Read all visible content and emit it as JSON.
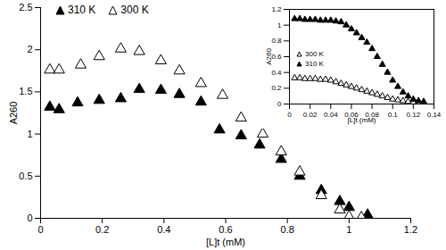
{
  "chart_data": [
    {
      "type": "scatter",
      "x_label": "[L]t (mM)",
      "y_label": "A260",
      "xlim": [
        0,
        1.2
      ],
      "xticks": [
        0,
        0.2,
        0.4,
        0.6,
        0.8,
        1,
        1.2
      ],
      "ylim": [
        0,
        2.5
      ],
      "yticks": [
        0,
        0.5,
        1,
        1.5,
        2,
        2.5
      ],
      "grid": false,
      "legend": "upper left",
      "series": [
        {
          "name": "310 K",
          "color": "#000000",
          "marker": "triangle-filled",
          "x": [
            0.03,
            0.06,
            0.12,
            0.19,
            0.26,
            0.32,
            0.39,
            0.45,
            0.52,
            0.58,
            0.65,
            0.71,
            0.78,
            0.84,
            0.91,
            0.97,
            1.0,
            1.06
          ],
          "values": [
            1.32,
            1.29,
            1.37,
            1.4,
            1.42,
            1.53,
            1.52,
            1.47,
            1.38,
            1.05,
            0.98,
            0.87,
            0.7,
            0.5,
            0.33,
            0.2,
            0.13,
            0.04
          ]
        },
        {
          "name": "300 K",
          "color": "#000000",
          "marker": "triangle-open",
          "x": [
            0.03,
            0.06,
            0.13,
            0.19,
            0.26,
            0.32,
            0.39,
            0.45,
            0.52,
            0.59,
            0.65,
            0.72,
            0.78,
            0.84,
            0.91,
            0.97,
            1.0,
            1.04
          ],
          "values": [
            1.76,
            1.76,
            1.82,
            1.92,
            2.01,
            1.98,
            1.87,
            1.75,
            1.6,
            1.46,
            1.19,
            1.0,
            0.79,
            0.55,
            0.27,
            0.1,
            0.02,
            0.01
          ]
        }
      ]
    },
    {
      "type": "scatter",
      "x_label": "[L]t (mM)",
      "y_label": "A260",
      "xlim": [
        0,
        0.14
      ],
      "xticks": [
        0,
        0.02,
        0.04,
        0.06,
        0.08,
        0.1,
        0.12,
        0.14
      ],
      "ylim": [
        0,
        1.2
      ],
      "yticks": [
        0,
        0.2,
        0.4,
        0.6,
        0.8,
        1,
        1.2
      ],
      "grid": false,
      "legend": "center left",
      "series": [
        {
          "name": "300 K",
          "color": "#000000",
          "marker": "triangle-open",
          "x": [
            0.005,
            0.01,
            0.015,
            0.02,
            0.025,
            0.03,
            0.035,
            0.04,
            0.045,
            0.05,
            0.055,
            0.06,
            0.065,
            0.07,
            0.075,
            0.08,
            0.085,
            0.09,
            0.095,
            0.1,
            0.105,
            0.11,
            0.115,
            0.12,
            0.125
          ],
          "values": [
            0.33,
            0.33,
            0.32,
            0.32,
            0.32,
            0.31,
            0.31,
            0.3,
            0.28,
            0.26,
            0.24,
            0.22,
            0.2,
            0.18,
            0.16,
            0.14,
            0.12,
            0.1,
            0.08,
            0.06,
            0.05,
            0.04,
            0.03,
            0.02,
            0.01
          ]
        },
        {
          "name": "310 K",
          "color": "#000000",
          "marker": "triangle-filled",
          "x": [
            0.005,
            0.01,
            0.015,
            0.02,
            0.025,
            0.03,
            0.035,
            0.04,
            0.045,
            0.05,
            0.055,
            0.06,
            0.065,
            0.07,
            0.075,
            0.08,
            0.085,
            0.09,
            0.095,
            0.1,
            0.105,
            0.11,
            0.115,
            0.12,
            0.125,
            0.13
          ],
          "values": [
            1.08,
            1.08,
            1.07,
            1.07,
            1.07,
            1.06,
            1.06,
            1.06,
            1.05,
            1.04,
            1.0,
            0.95,
            0.9,
            0.84,
            0.78,
            0.7,
            0.6,
            0.5,
            0.4,
            0.3,
            0.22,
            0.15,
            0.1,
            0.06,
            0.04,
            0.03
          ]
        }
      ]
    }
  ]
}
